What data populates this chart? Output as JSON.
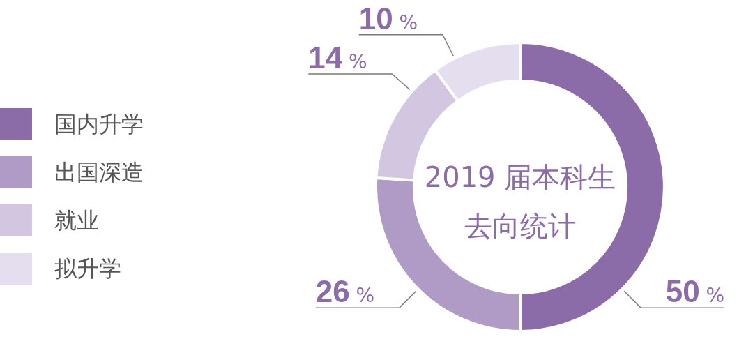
{
  "chart_data": {
    "type": "donut",
    "title": "2019 届本科生",
    "subtitle": "去向统计",
    "categories": [
      "国内升学",
      "出国深造",
      "就业",
      "拟升学"
    ],
    "values": [
      50,
      26,
      14,
      10
    ],
    "colors": [
      "#8c6ba9",
      "#b09ac6",
      "#d3c6e0",
      "#e5deee"
    ],
    "value_labels": [
      "50 %",
      "26 %",
      "14 %",
      "10 %"
    ],
    "legend": "left"
  }
}
